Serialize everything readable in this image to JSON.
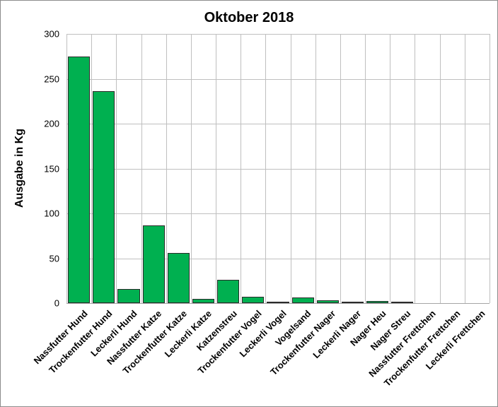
{
  "chart_data": {
    "type": "bar",
    "title": "Oktober 2018",
    "xlabel": "",
    "ylabel": "Ausgabe in Kg",
    "ylim": [
      0,
      300
    ],
    "yticks": [
      0,
      50,
      100,
      150,
      200,
      250,
      300
    ],
    "grid": true,
    "legend": null,
    "bar_color": "#00b050",
    "categories": [
      "Nassfutter Hund",
      "Trockenfutter Hund",
      "Leckerli Hund",
      "Nassfutter Katze",
      "Trockenfutter Katze",
      "Leckerli Katze",
      "Katzenstreu",
      "Trockenfutter Vogel",
      "Leckerli Vogel",
      "Vogelsand",
      "Trockenfutter Nager",
      "Leckerli Nager",
      "Nager Heu",
      "Nager Streu",
      "Nassfutter Frettchen",
      "Trockenfutter Frettchen",
      "Leckerli Frettchen"
    ],
    "values": [
      275,
      236,
      16,
      87,
      56,
      5,
      26,
      7,
      0.5,
      6,
      3,
      0.5,
      2,
      1,
      0,
      0,
      0
    ]
  }
}
